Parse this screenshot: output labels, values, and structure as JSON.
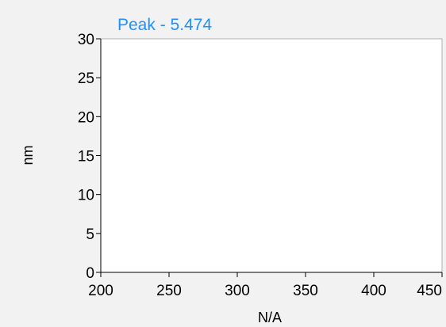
{
  "chart_data": {
    "type": "line",
    "title": "Peak - 5.474",
    "xlabel": "N/A",
    "ylabel": "nm",
    "xlim": [
      200,
      450
    ],
    "ylim": [
      0,
      30
    ],
    "x_ticks": [
      200,
      250,
      300,
      350,
      400,
      450
    ],
    "y_ticks": [
      0,
      5,
      10,
      15,
      20,
      25,
      30
    ],
    "series": [],
    "grid": false,
    "colors": {
      "title": "#1e90ff",
      "plot_background": "#ffffff",
      "figure_background": "#f2f2f2",
      "plot_border": "#b0b0b0",
      "axis": "#000000"
    }
  }
}
